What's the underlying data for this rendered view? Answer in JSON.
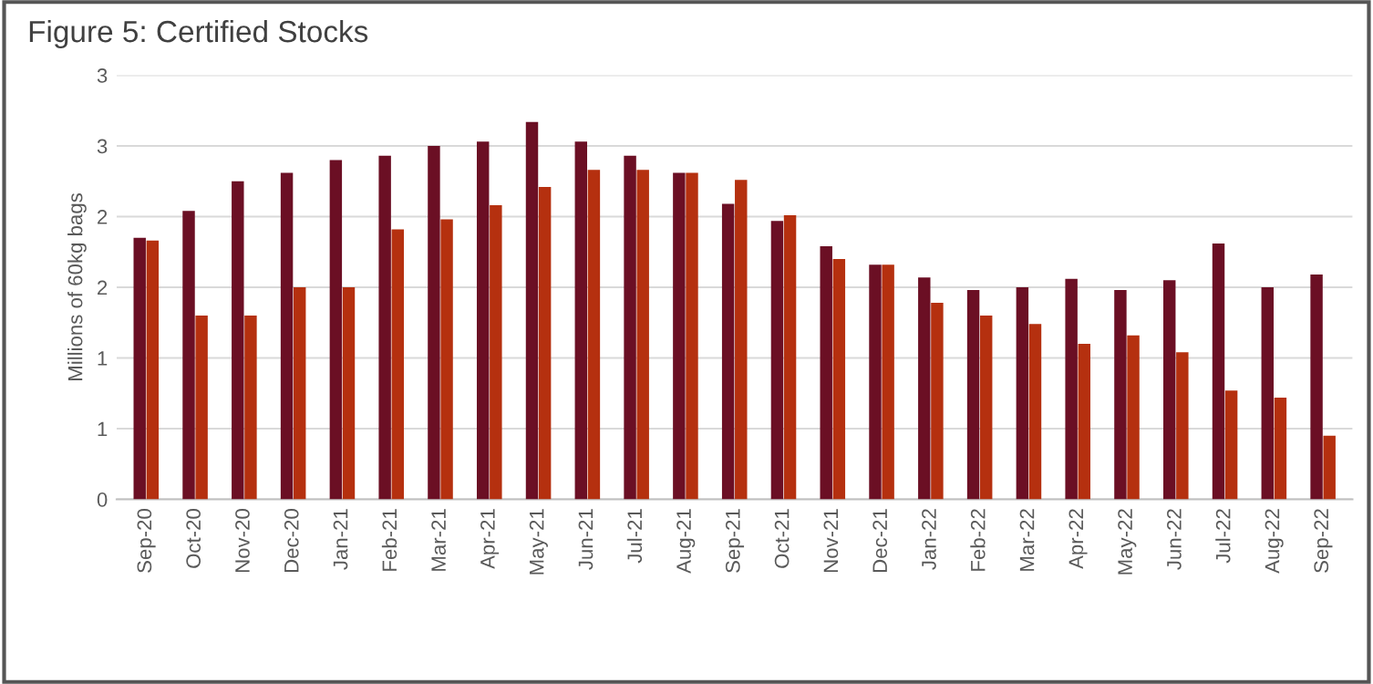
{
  "chart_data": {
    "type": "bar",
    "title": "Figure 5: Certified Stocks",
    "ylabel": "Millions of 60kg bags",
    "categories": [
      "Sep-20",
      "Oct-20",
      "Nov-20",
      "Dec-20",
      "Jan-21",
      "Feb-21",
      "Mar-21",
      "Apr-21",
      "May-21",
      "Jun-21",
      "Jul-21",
      "Aug-21",
      "Sep-21",
      "Oct-21",
      "Nov-21",
      "Dec-21",
      "Jan-22",
      "Feb-22",
      "Mar-22",
      "Apr-22",
      "May-22",
      "Jun-22",
      "Jul-22",
      "Aug-22",
      "Sep-22"
    ],
    "series": [
      {
        "color": "#6b0f24",
        "values": [
          1.85,
          2.04,
          2.25,
          2.31,
          2.4,
          2.43,
          2.5,
          2.53,
          2.67,
          2.53,
          2.43,
          2.31,
          2.09,
          1.97,
          1.79,
          1.66,
          1.57,
          1.48,
          1.5,
          1.56,
          1.48,
          1.55,
          1.81,
          1.5,
          1.59
        ]
      },
      {
        "color": "#b5300f",
        "values": [
          1.83,
          1.3,
          1.3,
          1.5,
          1.5,
          1.91,
          1.98,
          2.08,
          2.21,
          2.33,
          2.33,
          2.31,
          2.26,
          2.01,
          1.7,
          1.66,
          1.39,
          1.3,
          1.24,
          1.1,
          1.16,
          1.04,
          0.77,
          0.72,
          0.45
        ]
      }
    ],
    "ylim": [
      0,
      3
    ],
    "yticks": [
      0,
      {
        "value": 0.5,
        "label": "1"
      },
      1,
      {
        "value": 1.5,
        "label": "2"
      },
      2,
      {
        "value": 2.5,
        "label": "3"
      },
      3
    ],
    "grid": "y"
  }
}
